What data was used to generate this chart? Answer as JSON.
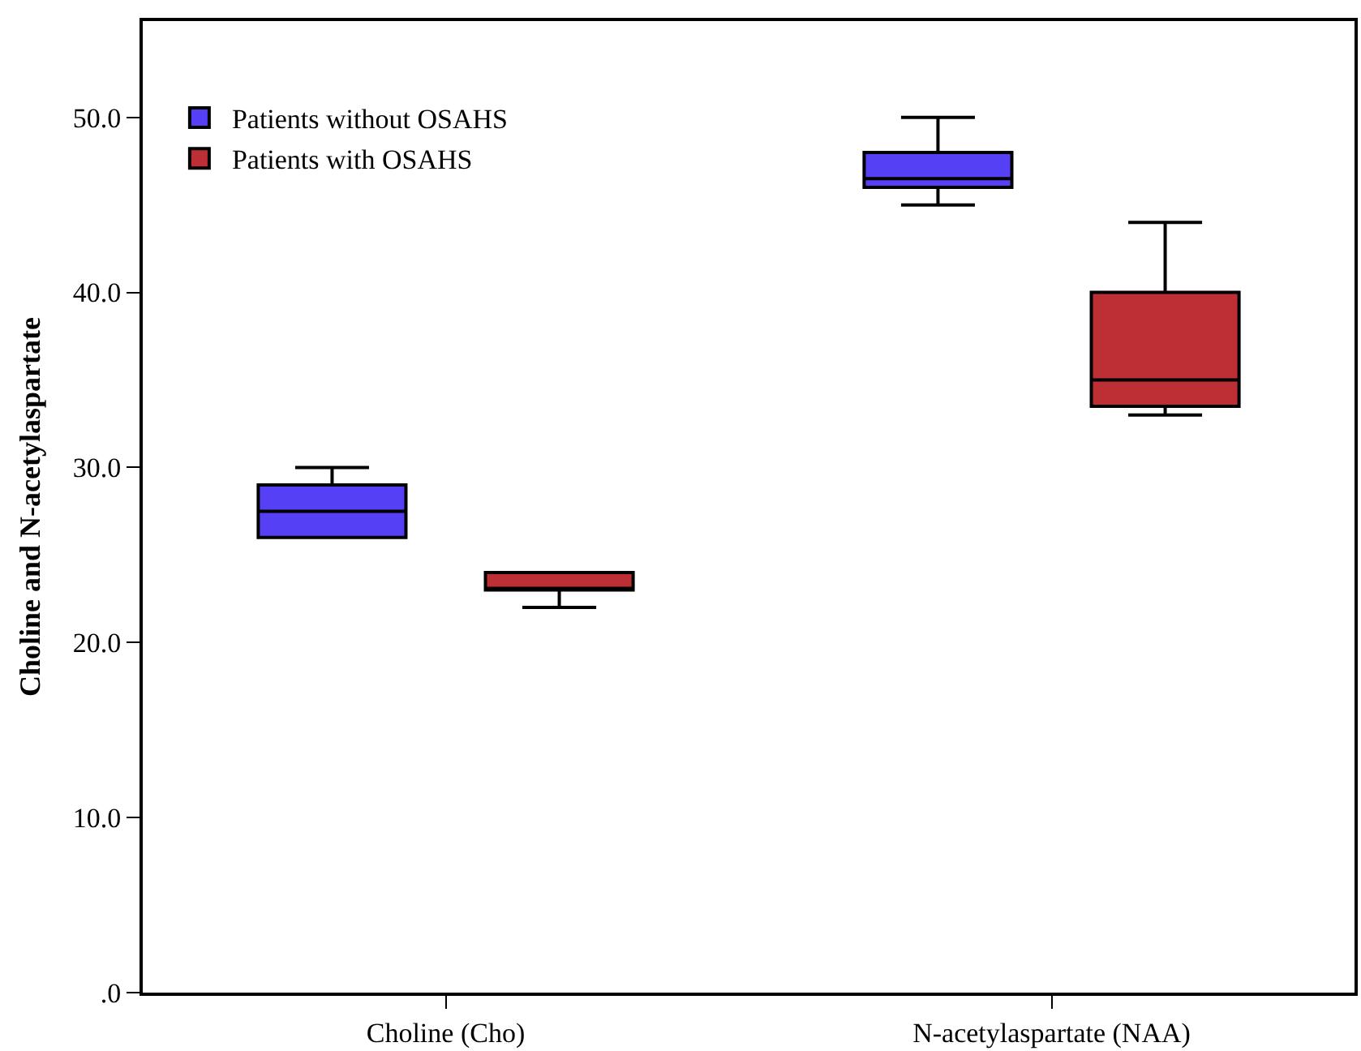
{
  "chart_data": {
    "type": "box",
    "ylabel": "Choline and N-acetylaspartate",
    "categories": [
      "Choline (Cho)",
      "N-acetylaspartate (NAA)"
    ],
    "series": [
      {
        "name": "Patients without OSAHS",
        "color": "#5540f5",
        "boxes": [
          {
            "low": 26,
            "q1": 26,
            "median": 27.5,
            "q3": 29,
            "high": 30
          },
          {
            "low": 45,
            "q1": 46,
            "median": 46.5,
            "q3": 48,
            "high": 50
          }
        ]
      },
      {
        "name": "Patients with OSAHS",
        "color": "#be2e35",
        "boxes": [
          {
            "low": 22,
            "q1": 23,
            "median": 23,
            "q3": 24,
            "high": 24
          },
          {
            "low": 33,
            "q1": 33.5,
            "median": 35,
            "q3": 40,
            "high": 44
          }
        ]
      }
    ],
    "ylim": [
      0,
      55.5
    ],
    "yticks": [
      {
        "value": 0,
        "label": ".0"
      },
      {
        "value": 10,
        "label": "10.0"
      },
      {
        "value": 20,
        "label": "20.0"
      },
      {
        "value": 30,
        "label": "30.0"
      },
      {
        "value": 40,
        "label": "40.0"
      },
      {
        "value": 50,
        "label": "50.0"
      }
    ],
    "legend": "top left"
  }
}
